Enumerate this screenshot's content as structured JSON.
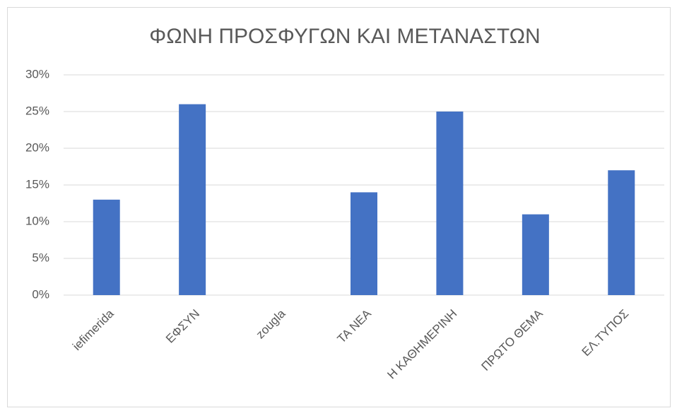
{
  "chart_data": {
    "type": "bar",
    "title": "ΦΩΝΗ ΠΡΟΣΦΥΓΩΝ ΚΑΙ ΜΕΤΑΝΑΣΤΩΝ",
    "categories": [
      "iefimerida",
      "ΕΦΣΥΝ",
      "zougla",
      "ΤΑ ΝΕΑ",
      "Η ΚΑΘΗΜΕΡΙΝΗ",
      "ΠΡΩΤΟ ΘΕΜΑ",
      "ΕΛ.ΤΥΠΟΣ"
    ],
    "values": [
      13,
      26,
      0,
      14,
      25,
      11,
      17
    ],
    "color": "#4472c4",
    "ylim": [
      0,
      30
    ],
    "yticks": [
      {
        "value": 0,
        "label": "0%"
      },
      {
        "value": 5,
        "label": "5%"
      },
      {
        "value": 10,
        "label": "10%"
      },
      {
        "value": 15,
        "label": "15%"
      },
      {
        "value": 20,
        "label": "20%"
      },
      {
        "value": 25,
        "label": "25%"
      },
      {
        "value": 30,
        "label": "30%"
      }
    ],
    "grid": true
  }
}
